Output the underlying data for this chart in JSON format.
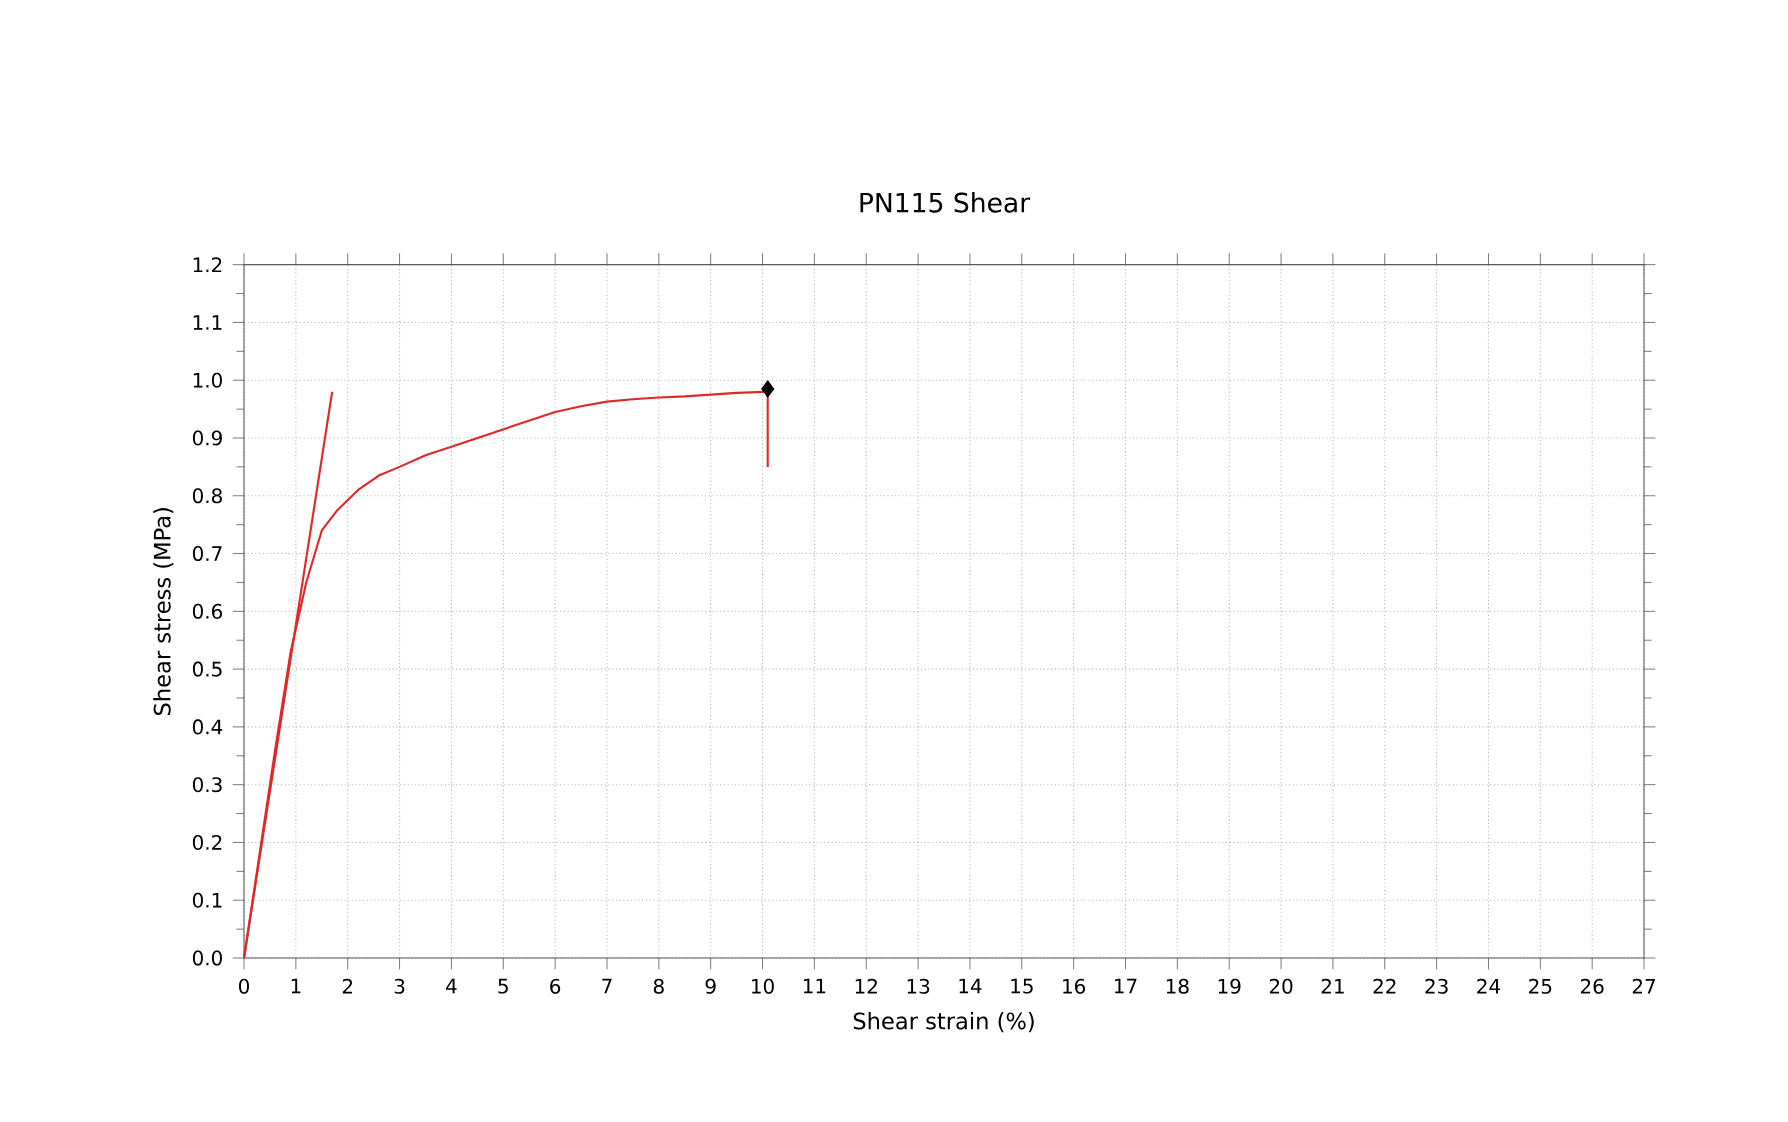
{
  "chart_data": {
    "type": "line",
    "title": "PN115 Shear",
    "xlabel": "Shear strain (%)",
    "ylabel": "Shear stress (MPa)",
    "xlim": [
      0,
      27
    ],
    "ylim": [
      0,
      1.2
    ],
    "xticks": [
      0,
      1,
      2,
      3,
      4,
      5,
      6,
      7,
      8,
      9,
      10,
      11,
      12,
      13,
      14,
      15,
      16,
      17,
      18,
      19,
      20,
      21,
      22,
      23,
      24,
      25,
      26,
      27
    ],
    "yticks": [
      {
        "value": 0,
        "label": "0.0"
      },
      0.1,
      0.2,
      0.3,
      0.4,
      0.5,
      0.6,
      0.7,
      0.8,
      0.9,
      {
        "value": 1,
        "label": "1.0"
      },
      1.1,
      1.2
    ],
    "grid": true,
    "series": [
      {
        "color": "#e02828",
        "x": [
          0,
          0.3,
          0.6,
          0.9,
          1.2,
          1.5,
          1.8,
          2.2,
          2.6,
          3,
          3.5,
          4,
          4.5,
          5,
          5.5,
          6,
          6.5,
          7,
          7.5,
          8,
          8.5,
          9,
          9.5,
          10.1,
          10.1
        ],
        "values": [
          0,
          0.18,
          0.36,
          0.53,
          0.65,
          0.74,
          0.775,
          0.81,
          0.835,
          0.85,
          0.87,
          0.885,
          0.9,
          0.915,
          0.93,
          0.945,
          0.955,
          0.963,
          0.967,
          0.97,
          0.972,
          0.975,
          0.978,
          0.98,
          0.85
        ]
      },
      {
        "color": "#e02828",
        "x": [
          0,
          1.7
        ],
        "values": [
          0,
          0.98
        ]
      },
      {
        "type": "scatter",
        "color": "#000000",
        "marker": "diamond",
        "x": [
          10.1
        ],
        "values": [
          0.985
        ]
      }
    ]
  }
}
